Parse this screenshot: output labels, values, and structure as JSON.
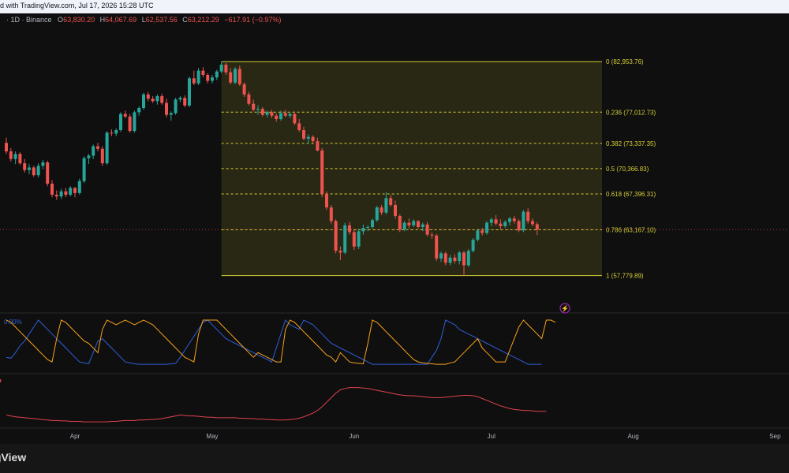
{
  "header": {
    "attribution": "d with TradingView.com, Jul 17, 2026 15:28 UTC"
  },
  "legend": {
    "symbol": "· 1D · Binance",
    "o_label": "O",
    "o_value": "63,830.20",
    "h_label": "H",
    "h_value": "64,067.69",
    "l_label": "L",
    "l_value": "62,537.56",
    "c_label": "C",
    "c_value": "63,212.29",
    "change": "−617.91 (−0.97%)"
  },
  "fib": {
    "levels": [
      {
        "label": "0 (82,953.76)",
        "price": 82953.76
      },
      {
        "label": "0.236 (77,012.73)",
        "price": 77012.73
      },
      {
        "label": "0.382 (73,337.35)",
        "price": 73337.35
      },
      {
        "label": "0.5 (70,366.83)",
        "price": 70366.83
      },
      {
        "label": "0.618 (67,396.31)",
        "price": 67396.31
      },
      {
        "label": "0.786 (63,167.10)",
        "price": 63167.1
      },
      {
        "label": "1 (57,779.89)",
        "price": 57779.89
      }
    ],
    "start_index": 47
  },
  "last_price": 63212.29,
  "indicator1_label": "0.00%",
  "month_labels": [
    {
      "label": "Apr",
      "index": 15
    },
    {
      "label": "May",
      "index": 45
    },
    {
      "label": "Jun",
      "index": 76
    },
    {
      "label": "Jul",
      "index": 106
    },
    {
      "label": "Aug",
      "index": 137
    },
    {
      "label": "Sep",
      "index": 168
    }
  ],
  "footer": {
    "brand": "gView"
  },
  "colors": {
    "up": "#26a69a",
    "down": "#ef5350",
    "fib": "#d5cf35",
    "osc_blue": "#2f5fd8",
    "osc_orange": "#f7a21b",
    "osc_red": "#e0424f",
    "axis_text": "#b2b5be"
  },
  "chart_data": {
    "type": "candlestick",
    "x_axis": "Mar–Jul 2026 (daily)",
    "ohlc": [
      [
        73400,
        74000,
        72100,
        72400
      ],
      [
        72400,
        72800,
        71200,
        71500
      ],
      [
        71500,
        72400,
        70900,
        72100
      ],
      [
        72100,
        72300,
        70800,
        71000
      ],
      [
        71000,
        71500,
        69900,
        70200
      ],
      [
        70200,
        70900,
        69700,
        70500
      ],
      [
        70500,
        70700,
        69400,
        69600
      ],
      [
        69600,
        71000,
        69300,
        70700
      ],
      [
        70700,
        71400,
        70300,
        71100
      ],
      [
        71100,
        71300,
        68300,
        68600
      ],
      [
        68600,
        69000,
        67000,
        67300
      ],
      [
        67300,
        67800,
        66700,
        67100
      ],
      [
        67100,
        68000,
        66800,
        67700
      ],
      [
        67700,
        68100,
        67000,
        67300
      ],
      [
        67300,
        68300,
        67100,
        68100
      ],
      [
        68100,
        68200,
        67000,
        67500
      ],
      [
        67500,
        69200,
        67300,
        68900
      ],
      [
        68900,
        71800,
        68700,
        71600
      ],
      [
        71600,
        72100,
        70900,
        71900
      ],
      [
        71900,
        73200,
        71500,
        73000
      ],
      [
        73000,
        73400,
        72400,
        72700
      ],
      [
        72700,
        73000,
        70700,
        71000
      ],
      [
        71000,
        74800,
        70800,
        74600
      ],
      [
        74600,
        75000,
        74200,
        74500
      ],
      [
        74500,
        75100,
        74200,
        74900
      ],
      [
        74900,
        77000,
        74700,
        76800
      ],
      [
        76800,
        77200,
        76300,
        76500
      ],
      [
        76500,
        76800,
        74600,
        74800
      ],
      [
        74800,
        77200,
        74600,
        77000
      ],
      [
        77000,
        77700,
        76600,
        77500
      ],
      [
        77500,
        79300,
        77300,
        79100
      ],
      [
        79100,
        79400,
        78300,
        78600
      ],
      [
        78600,
        78900,
        78100,
        78300
      ],
      [
        78300,
        79100,
        77900,
        78900
      ],
      [
        78900,
        79200,
        77900,
        78100
      ],
      [
        78100,
        78600,
        76400,
        76700
      ],
      [
        76700,
        77100,
        76000,
        76900
      ],
      [
        76900,
        78700,
        76700,
        78500
      ],
      [
        78500,
        78900,
        78200,
        78700
      ],
      [
        78700,
        79000,
        77600,
        77800
      ],
      [
        77800,
        81200,
        77600,
        81000
      ],
      [
        81000,
        81900,
        80200,
        80400
      ],
      [
        80400,
        82200,
        80200,
        81900
      ],
      [
        81900,
        82300,
        81100,
        81400
      ],
      [
        81400,
        81600,
        80400,
        80700
      ],
      [
        80700,
        81400,
        80400,
        81100
      ],
      [
        81100,
        82000,
        80800,
        81800
      ],
      [
        81800,
        82953.76,
        81600,
        82600
      ],
      [
        82600,
        82800,
        81400,
        81700
      ],
      [
        81700,
        82200,
        80300,
        80500
      ],
      [
        80500,
        82300,
        80300,
        82100
      ],
      [
        82100,
        82500,
        80100,
        80300
      ],
      [
        80300,
        80500,
        78800,
        79100
      ],
      [
        79100,
        79400,
        77800,
        78000
      ],
      [
        78000,
        78500,
        77100,
        77300
      ],
      [
        77300,
        77800,
        76700,
        77400
      ],
      [
        77400,
        77600,
        76500,
        76700
      ],
      [
        76700,
        77200,
        76400,
        77000
      ],
      [
        77000,
        77300,
        76300,
        76600
      ],
      [
        76600,
        76900,
        75900,
        76200
      ],
      [
        76200,
        77200,
        76000,
        76900
      ],
      [
        76900,
        77300,
        76400,
        76600
      ],
      [
        76600,
        77000,
        76300,
        76800
      ],
      [
        76800,
        77100,
        75500,
        75700
      ],
      [
        75700,
        76200,
        74700,
        74900
      ],
      [
        74900,
        75300,
        73700,
        73900
      ],
      [
        73900,
        74400,
        73300,
        74100
      ],
      [
        74100,
        74300,
        73400,
        73600
      ],
      [
        73600,
        74000,
        72400,
        72500
      ],
      [
        72500,
        72800,
        67000,
        67400
      ],
      [
        67400,
        67700,
        65500,
        65800
      ],
      [
        65800,
        66100,
        63900,
        64200
      ],
      [
        64200,
        64400,
        60400,
        60700
      ],
      [
        60700,
        61200,
        59600,
        60500
      ],
      [
        60500,
        64000,
        60300,
        63700
      ],
      [
        63700,
        64100,
        62600,
        62900
      ],
      [
        62900,
        63300,
        60800,
        61200
      ],
      [
        61200,
        63300,
        60900,
        63000
      ],
      [
        63000,
        63800,
        62600,
        63400
      ],
      [
        63400,
        63700,
        63000,
        63500
      ],
      [
        63500,
        64500,
        63300,
        64300
      ],
      [
        64300,
        66000,
        64100,
        65800
      ],
      [
        65800,
        66100,
        64900,
        65200
      ],
      [
        65200,
        67600,
        65000,
        66900
      ],
      [
        66900,
        67300,
        65900,
        66100
      ],
      [
        66100,
        66600,
        64500,
        64800
      ],
      [
        64800,
        65000,
        62900,
        63200
      ],
      [
        63200,
        64200,
        63000,
        64000
      ],
      [
        64000,
        64500,
        63300,
        63700
      ],
      [
        63700,
        64400,
        63500,
        64200
      ],
      [
        64200,
        64300,
        63300,
        63500
      ],
      [
        63500,
        64000,
        63000,
        63800
      ],
      [
        63800,
        64100,
        62400,
        62600
      ],
      [
        62600,
        62900,
        62100,
        62500
      ],
      [
        62500,
        62700,
        59500,
        59800
      ],
      [
        59800,
        60600,
        59400,
        60400
      ],
      [
        60400,
        60600,
        59000,
        59300
      ],
      [
        59300,
        60200,
        59000,
        59900
      ],
      [
        59900,
        60300,
        59200,
        59500
      ],
      [
        59500,
        60700,
        59100,
        60500
      ],
      [
        60500,
        60700,
        57779.89,
        59000
      ],
      [
        59000,
        60900,
        58800,
        60700
      ],
      [
        60700,
        62200,
        60500,
        62000
      ],
      [
        62000,
        63300,
        61800,
        63100
      ],
      [
        63100,
        63400,
        62500,
        62800
      ],
      [
        62800,
        64200,
        62600,
        64000
      ],
      [
        64000,
        64600,
        63600,
        64400
      ],
      [
        64400,
        64900,
        63700,
        63900
      ],
      [
        63900,
        64400,
        63200,
        63600
      ],
      [
        63600,
        64300,
        63400,
        64100
      ],
      [
        64100,
        64700,
        63700,
        64500
      ],
      [
        64500,
        64800,
        63900,
        64200
      ],
      [
        64200,
        64400,
        62900,
        63100
      ],
      [
        63100,
        65500,
        62900,
        65300
      ],
      [
        65300,
        65700,
        63900,
        64200
      ],
      [
        64200,
        64500,
        63600,
        63830.2
      ],
      [
        63830.2,
        64067.69,
        62537.56,
        63212.29
      ]
    ],
    "y_axis": {
      "min": 54500,
      "max": 86500
    },
    "oscillator": {
      "y_range": [
        0,
        100
      ],
      "series": [
        {
          "values": [
            20,
            18,
            30,
            45,
            55,
            70,
            85,
            100,
            90,
            80,
            70,
            60,
            50,
            40,
            30,
            20,
            10,
            8,
            6,
            30,
            55,
            60,
            50,
            40,
            30,
            20,
            10,
            8,
            6,
            5,
            5,
            5,
            5,
            5,
            5,
            5,
            6,
            7,
            20,
            35,
            50,
            65,
            80,
            95,
            100,
            90,
            80,
            70,
            60,
            55,
            50,
            45,
            40,
            35,
            30,
            25,
            20,
            15,
            10,
            40,
            70,
            100,
            90,
            85,
            80,
            100,
            95,
            90,
            80,
            70,
            60,
            50,
            45,
            40,
            35,
            30,
            25,
            20,
            15,
            10,
            5,
            5,
            5,
            5,
            5,
            5,
            5,
            5,
            5,
            5,
            5,
            5,
            5,
            20,
            35,
            60,
            100,
            95,
            90,
            80,
            75,
            70,
            65,
            60,
            55,
            50,
            45,
            40,
            35,
            30,
            25,
            20,
            15,
            10,
            5,
            5,
            5,
            5
          ]
        },
        {
          "values": [
            100,
            95,
            85,
            75,
            65,
            55,
            45,
            35,
            25,
            15,
            10,
            60,
            100,
            95,
            85,
            75,
            65,
            55,
            50,
            40,
            30,
            80,
            100,
            95,
            90,
            95,
            100,
            95,
            90,
            95,
            100,
            95,
            90,
            80,
            70,
            60,
            50,
            40,
            30,
            20,
            15,
            10,
            70,
            100,
            100,
            100,
            100,
            90,
            80,
            70,
            60,
            50,
            40,
            30,
            20,
            30,
            25,
            20,
            15,
            10,
            10,
            80,
            100,
            95,
            85,
            75,
            65,
            55,
            45,
            35,
            25,
            20,
            10,
            30,
            20,
            10,
            8,
            7,
            6,
            50,
            100,
            95,
            85,
            75,
            65,
            55,
            45,
            35,
            25,
            15,
            10,
            8,
            7,
            6,
            5,
            5,
            5,
            8,
            10,
            20,
            30,
            40,
            50,
            60,
            40,
            30,
            20,
            10,
            10,
            10,
            35,
            60,
            85,
            100,
            90,
            80,
            70,
            60,
            100,
            100,
            95
          ]
        }
      ]
    },
    "line_indicator": {
      "y_range": [
        0,
        100
      ],
      "values": [
        20,
        18,
        16,
        15,
        14,
        13,
        12,
        11,
        10,
        9,
        8,
        8,
        7,
        7,
        6,
        6,
        6,
        5,
        5,
        5,
        5,
        5,
        5,
        6,
        6,
        7,
        8,
        8,
        8,
        9,
        9,
        10,
        10,
        11,
        12,
        14,
        16,
        18,
        20,
        19,
        18,
        18,
        17,
        16,
        15,
        15,
        14,
        14,
        14,
        14,
        14,
        13,
        13,
        12,
        12,
        11,
        11,
        10,
        10,
        9,
        9,
        9,
        10,
        11,
        13,
        16,
        20,
        24,
        30,
        38,
        48,
        58,
        68,
        75,
        78,
        80,
        80,
        80,
        79,
        78,
        76,
        74,
        72,
        70,
        68,
        66,
        64,
        63,
        62,
        62,
        61,
        60,
        59,
        58,
        58,
        58,
        59,
        60,
        61,
        62,
        63,
        63,
        62,
        60,
        56,
        52,
        48,
        44,
        40,
        37,
        34,
        32,
        31,
        30,
        30,
        29,
        28,
        28,
        28
      ]
    }
  }
}
